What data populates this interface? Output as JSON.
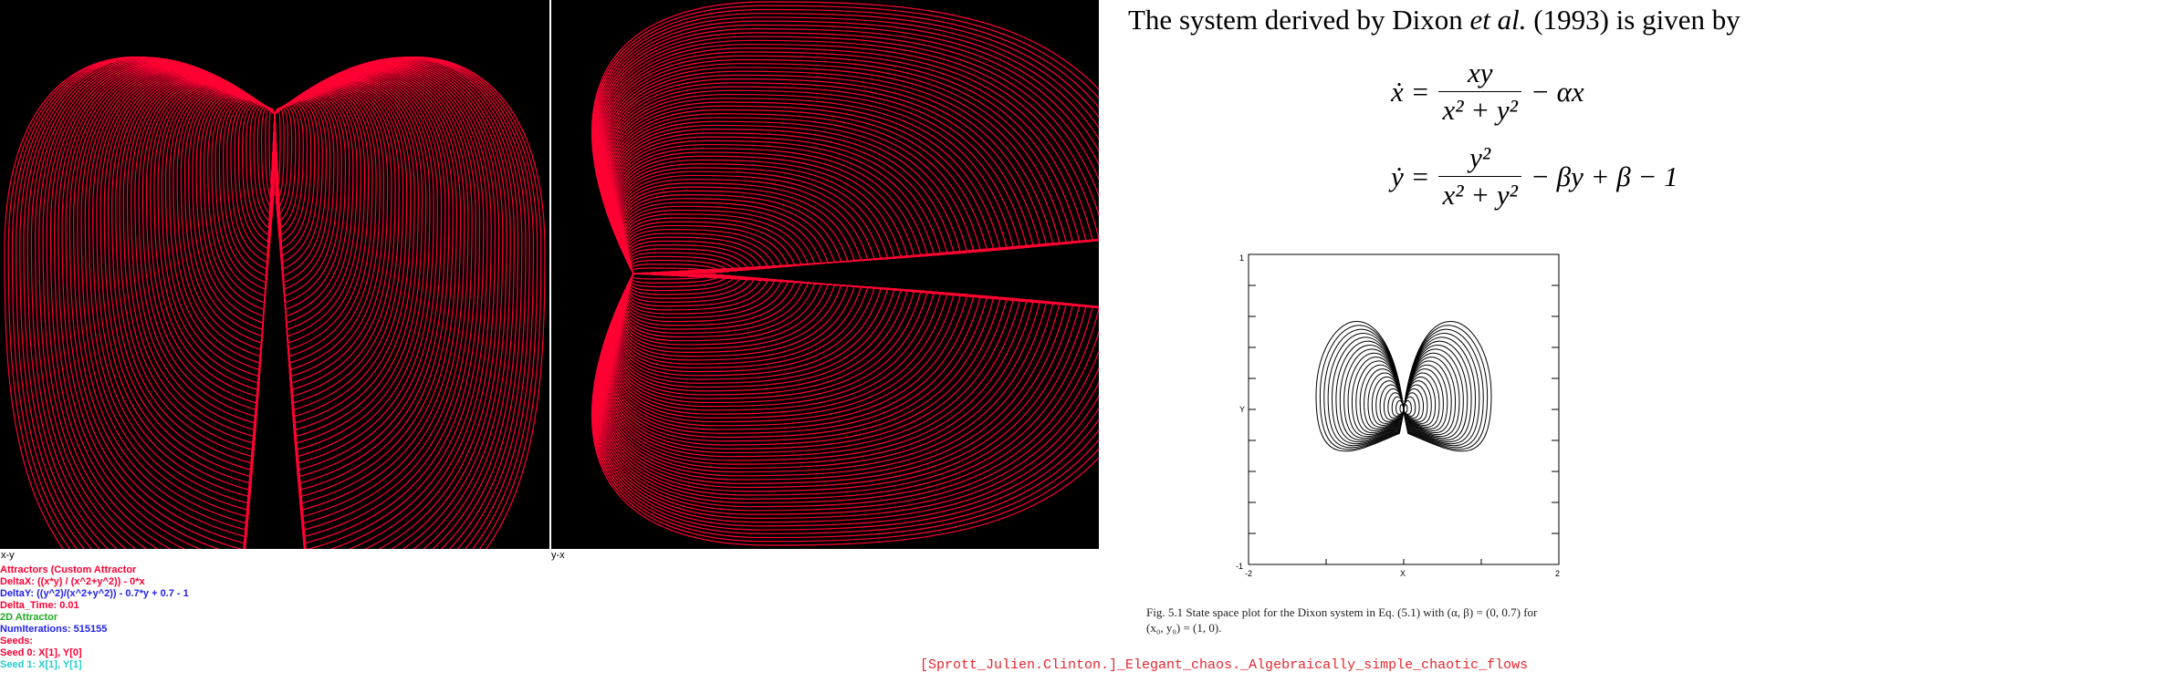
{
  "plots": {
    "xy_label": "x-y",
    "yx_label": "y-x",
    "trajectory_color": "#ff0033",
    "background_color": "#000000"
  },
  "info": {
    "title": "Attractors (Custom Attractor",
    "delta_x": "DeltaX: ((x*y) / (x^2+y^2)) - 0*x",
    "delta_y": "DeltaY: ((y^2)/(x^2+y^2)) - 0.7*y + 0.7 - 1",
    "delta_time": "Delta_Time: 0.01",
    "mode": "2D Attractor",
    "num_iterations": "NumIterations: 515155",
    "seeds": "Seeds:",
    "seed0": "Seed 0: X[1], Y[0]",
    "seed1": "Seed 1: X[1], Y[1]",
    "colors": {
      "title": "#ff0033",
      "delta_x": "#ff0033",
      "delta_y": "#2222ee",
      "delta_time": "#ff0033",
      "mode": "#22aa22",
      "num_iterations": "#2222ee",
      "seeds": "#ff0033",
      "seed0": "#ff0033",
      "seed1": "#22cccc"
    }
  },
  "document": {
    "intro_pre": "The system derived by Dixon ",
    "intro_etal": "et al.",
    "intro_post": " (1993) is given by",
    "eq1_lhs": "ẋ =",
    "eq1_num": "xy",
    "eq1_den": "x² + y²",
    "eq1_rhs": "− αx",
    "eq2_lhs": "ẏ =",
    "eq2_num": "y²",
    "eq2_den": "x² + y²",
    "eq2_rhs": "− βy + β − 1",
    "figure": {
      "y_tick_top": "1",
      "y_tick_bottom": "-1",
      "y_label": "Y",
      "x_tick_left": "-2",
      "x_tick_right": "2",
      "x_label": "X"
    },
    "caption_line1": "Fig. 5.1    State space plot for the Dixon system in Eq. (5.1) with (α, β) = (0, 0.7) for",
    "caption_line2": "(x₀, y₀) = (1, 0)."
  },
  "source": "[Sprott_Julien.Clinton.]_Elegant_chaos._Algebraically_simple_chaotic_flows"
}
